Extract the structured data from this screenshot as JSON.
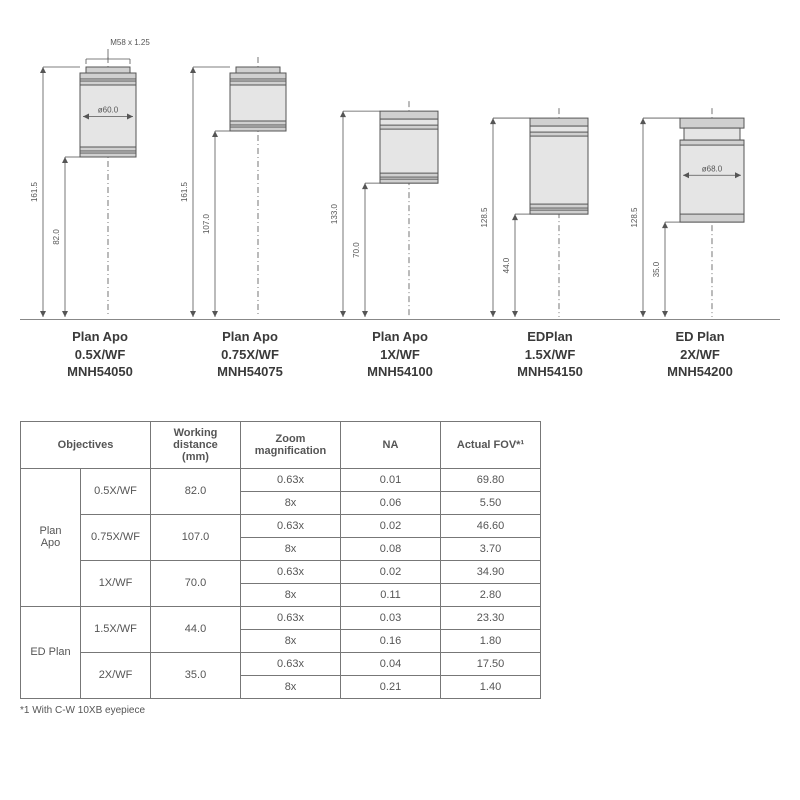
{
  "thread_label": "M58 x 1.25",
  "objectives": [
    {
      "name": "Plan Apo",
      "spec": "0.5X/WF",
      "part": "MNH54050",
      "total_h": 161.5,
      "wd": 82.0,
      "diam_label": "ø60.0",
      "body_h": 90,
      "body_w": 56,
      "top_ring": true,
      "show_diam": true,
      "show_thread": true
    },
    {
      "name": "Plan Apo",
      "spec": "0.75X/WF",
      "part": "MNH54075",
      "total_h": 161.5,
      "wd": 107.0,
      "diam_label": "",
      "body_h": 64,
      "body_w": 56,
      "top_ring": true,
      "show_diam": false,
      "show_thread": false
    },
    {
      "name": "Plan Apo",
      "spec": "1X/WF",
      "part": "MNH54100",
      "total_h": 133.0,
      "wd": 70.0,
      "diam_label": "",
      "body_h": 72,
      "body_w": 58,
      "top_ring": false,
      "show_diam": false,
      "show_thread": false
    },
    {
      "name": "EDPlan",
      "spec": "1.5X/WF",
      "part": "MNH54150",
      "total_h": 128.5,
      "wd": 44.0,
      "diam_label": "",
      "body_h": 96,
      "body_w": 58,
      "top_ring": false,
      "show_diam": false,
      "show_thread": false
    },
    {
      "name": "ED Plan",
      "spec": "2X/WF",
      "part": "MNH54200",
      "total_h": 128.5,
      "wd": 35.0,
      "diam_label": "ø68.0",
      "body_h": 104,
      "body_w": 64,
      "top_ring": false,
      "show_diam": true,
      "show_thread": false,
      "step_body": true
    }
  ],
  "table": {
    "headers": [
      "Objectives",
      "Working distance (mm)",
      "Zoom magnification",
      "NA",
      "Actual FOV*¹"
    ],
    "groups": [
      {
        "group_name": "Plan Apo",
        "rows": [
          {
            "spec": "0.5X/WF",
            "wd": "82.0",
            "zooms": [
              {
                "zoom": "0.63x",
                "na": "0.01",
                "fov": "69.80"
              },
              {
                "zoom": "8x",
                "na": "0.06",
                "fov": "5.50"
              }
            ]
          },
          {
            "spec": "0.75X/WF",
            "wd": "107.0",
            "zooms": [
              {
                "zoom": "0.63x",
                "na": "0.02",
                "fov": "46.60"
              },
              {
                "zoom": "8x",
                "na": "0.08",
                "fov": "3.70"
              }
            ]
          },
          {
            "spec": "1X/WF",
            "wd": "70.0",
            "zooms": [
              {
                "zoom": "0.63x",
                "na": "0.02",
                "fov": "34.90"
              },
              {
                "zoom": "8x",
                "na": "0.11",
                "fov": "2.80"
              }
            ]
          }
        ]
      },
      {
        "group_name": "ED Plan",
        "rows": [
          {
            "spec": "1.5X/WF",
            "wd": "44.0",
            "zooms": [
              {
                "zoom": "0.63x",
                "na": "0.03",
                "fov": "23.30"
              },
              {
                "zoom": "8x",
                "na": "0.16",
                "fov": "1.80"
              }
            ]
          },
          {
            "spec": "2X/WF",
            "wd": "35.0",
            "zooms": [
              {
                "zoom": "0.63x",
                "na": "0.04",
                "fov": "17.50"
              },
              {
                "zoom": "8x",
                "na": "0.21",
                "fov": "1.40"
              }
            ]
          }
        ]
      }
    ],
    "footnote": "*1 With C-W 10XB eyepiece"
  },
  "colors": {
    "stroke": "#555555",
    "body_fill": "#e5e5e5",
    "ring_fill": "#d0d0d0",
    "text": "#4a4a4a"
  }
}
